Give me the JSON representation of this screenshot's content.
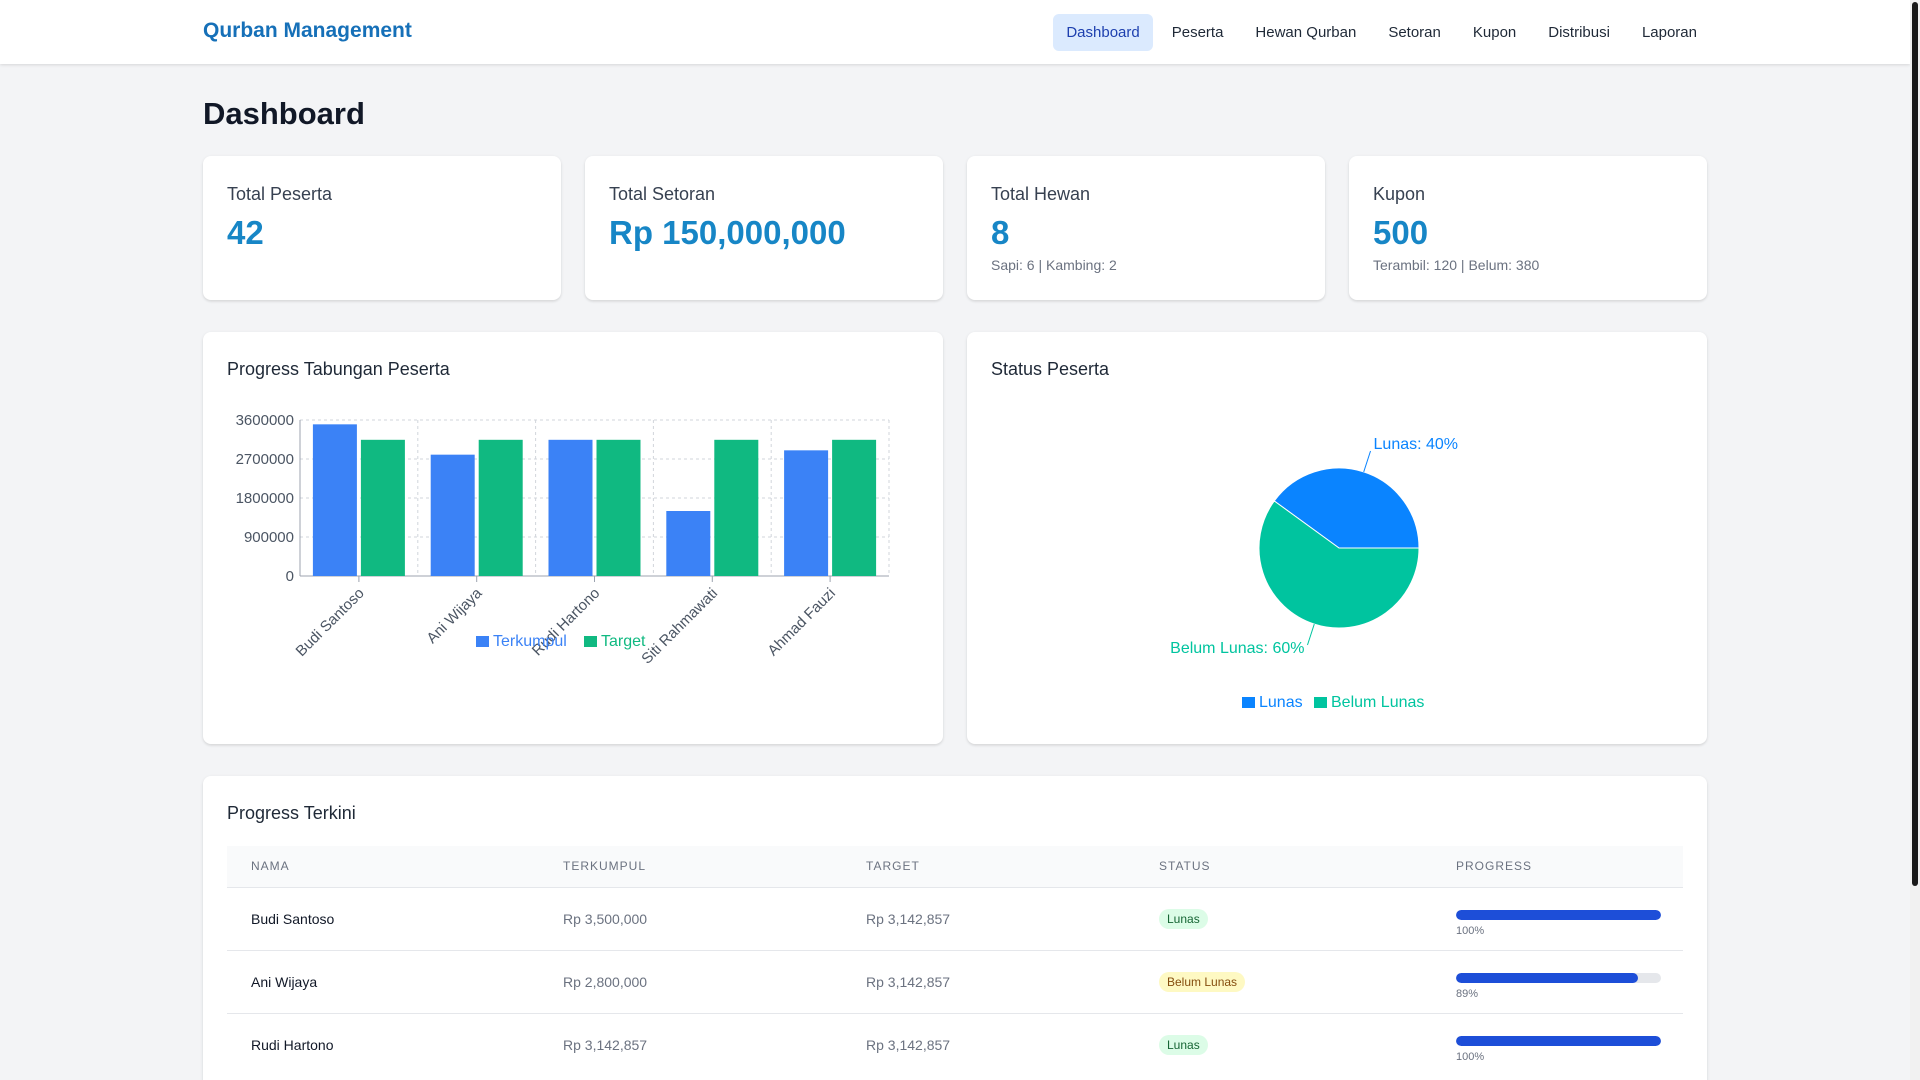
{
  "app": {
    "title": "Qurban Management"
  },
  "nav": [
    {
      "label": "Dashboard",
      "active": true
    },
    {
      "label": "Peserta"
    },
    {
      "label": "Hewan Qurban"
    },
    {
      "label": "Setoran"
    },
    {
      "label": "Kupon"
    },
    {
      "label": "Distribusi"
    },
    {
      "label": "Laporan"
    }
  ],
  "page": {
    "title": "Dashboard"
  },
  "stats": [
    {
      "label": "Total Peserta",
      "value": "42",
      "sub": ""
    },
    {
      "label": "Total Setoran",
      "value": "Rp 150,000,000",
      "sub": ""
    },
    {
      "label": "Total Hewan",
      "value": "8",
      "sub": "Sapi: 6 | Kambing: 2"
    },
    {
      "label": "Kupon",
      "value": "500",
      "sub": "Terambil: 120 | Belum: 380"
    }
  ],
  "colors": {
    "accent": "#1786c6",
    "terkumpul": "#3b82f6",
    "target": "#10b981",
    "lunas": "#0a84ff",
    "belum_lunas": "#00c49f"
  },
  "progress_chart": {
    "title": "Progress Tabungan Peserta",
    "chart_data": {
      "type": "bar",
      "categories": [
        "Budi Santoso",
        "Ani Wijaya",
        "Rudi Hartono",
        "Siti Rahmawati",
        "Ahmad Fauzi"
      ],
      "series": [
        {
          "name": "Terkumpul",
          "values": [
            3500000,
            2800000,
            3142857,
            1500000,
            2900000
          ]
        },
        {
          "name": "Target",
          "values": [
            3142857,
            3142857,
            3142857,
            3142857,
            3142857
          ]
        }
      ],
      "yticks": [
        "0",
        "900000",
        "1800000",
        "2700000",
        "3600000"
      ],
      "ylim": [
        0,
        3600000
      ],
      "grid": true,
      "legend": "bottom"
    }
  },
  "status_chart": {
    "title": "Status Peserta",
    "chart_data": {
      "type": "pie",
      "slices": [
        {
          "name": "Lunas",
          "value": 40,
          "label": "Lunas: 40%"
        },
        {
          "name": "Belum Lunas",
          "value": 60,
          "label": "Belum Lunas: 60%"
        }
      ],
      "legend": "bottom"
    }
  },
  "recent": {
    "title": "Progress Terkini",
    "columns": [
      "NAMA",
      "TERKUMPUL",
      "TARGET",
      "STATUS",
      "PROGRESS"
    ],
    "rows": [
      {
        "nama": "Budi Santoso",
        "terkumpul": "Rp 3,500,000",
        "target": "Rp 3,142,857",
        "status": "Lunas",
        "progress": 100,
        "progress_label": "100%"
      },
      {
        "nama": "Ani Wijaya",
        "terkumpul": "Rp 2,800,000",
        "target": "Rp 3,142,857",
        "status": "Belum Lunas",
        "progress": 89,
        "progress_label": "89%"
      },
      {
        "nama": "Rudi Hartono",
        "terkumpul": "Rp 3,142,857",
        "target": "Rp 3,142,857",
        "status": "Lunas",
        "progress": 100,
        "progress_label": "100%"
      }
    ]
  }
}
